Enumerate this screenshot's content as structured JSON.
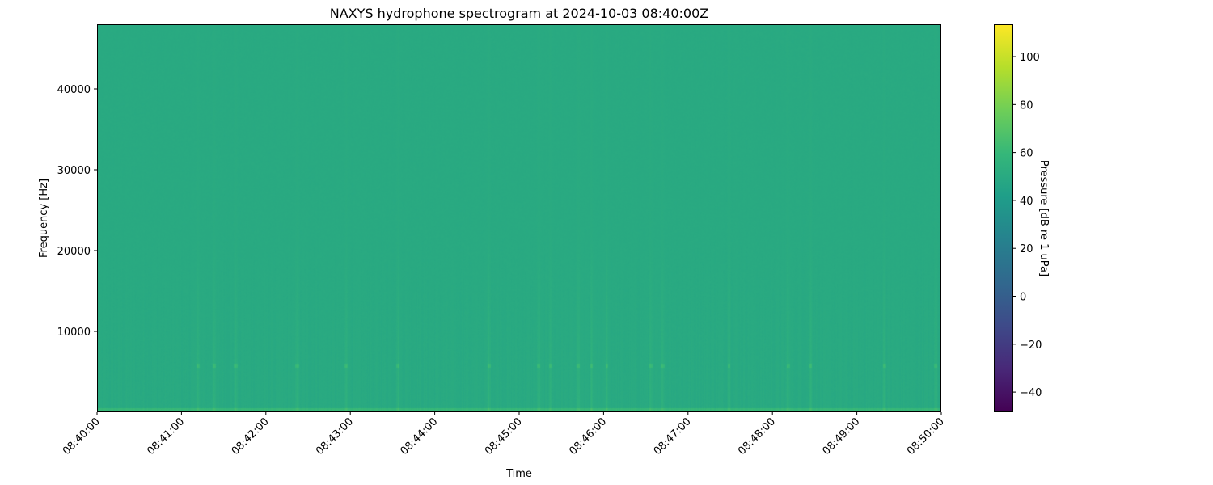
{
  "chart_data": {
    "type": "heatmap",
    "title": "NAXYS hydrophone spectrogram at 2024-10-03 08:40:00Z",
    "xlabel": "Time",
    "ylabel": "Frequency [Hz]",
    "xlim": [
      "08:40:00",
      "08:50:00"
    ],
    "ylim": [
      0,
      48000
    ],
    "x_ticks": [
      "08:40:00",
      "08:41:00",
      "08:42:00",
      "08:43:00",
      "08:44:00",
      "08:45:00",
      "08:46:00",
      "08:47:00",
      "08:48:00",
      "08:49:00",
      "08:50:00"
    ],
    "y_ticks": [
      10000,
      20000,
      30000,
      40000
    ],
    "colorbar": {
      "label": "Pressure [dB re 1 uPa]",
      "colormap": "viridis",
      "range": [
        -48.4,
        113.5
      ],
      "ticks": [
        -40,
        -20,
        0,
        20,
        40,
        60,
        80,
        100
      ]
    },
    "background_level_db": 50,
    "low_frequency_band": {
      "max_hz": 600,
      "level_db": 60
    },
    "tonal_band": {
      "frequency_hz": 5800,
      "level_db": 62
    },
    "transients": [
      "08:41:11",
      "08:41:23",
      "08:41:38",
      "08:42:22",
      "08:42:57",
      "08:43:34",
      "08:44:38",
      "08:45:14",
      "08:45:22",
      "08:45:42",
      "08:45:51",
      "08:46:02",
      "08:46:33",
      "08:46:42",
      "08:47:29",
      "08:48:11",
      "08:48:27",
      "08:49:19",
      "08:49:56"
    ],
    "grid": false
  }
}
